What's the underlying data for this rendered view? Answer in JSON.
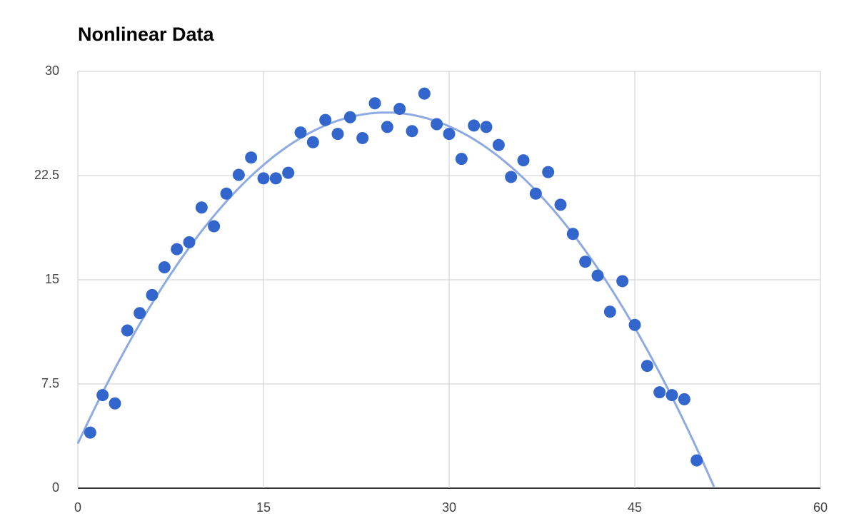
{
  "chart_data": {
    "type": "scatter",
    "title": "Nonlinear Data",
    "series": [
      {
        "color": "#3366cc",
        "x": [
          1,
          2,
          3,
          4,
          5,
          6,
          7,
          8,
          9,
          10,
          11,
          12,
          13,
          14,
          15,
          16,
          17,
          18,
          19,
          20,
          21,
          22,
          23,
          24,
          25,
          26,
          27,
          28,
          29,
          30,
          31,
          32,
          33,
          34,
          35,
          36,
          37,
          38,
          39,
          40,
          41,
          42,
          43,
          44,
          45,
          46,
          47,
          48,
          49,
          50
        ],
        "values": [
          4.0,
          6.7,
          6.1,
          11.35,
          12.6,
          13.9,
          15.9,
          17.2,
          17.7,
          20.2,
          18.85,
          21.2,
          22.55,
          23.8,
          22.3,
          22.3,
          22.7,
          25.6,
          24.9,
          26.5,
          25.5,
          26.7,
          25.2,
          27.7,
          26.0,
          27.3,
          25.7,
          28.4,
          26.2,
          25.5,
          23.7,
          26.1,
          26.0,
          24.7,
          22.4,
          23.6,
          21.2,
          22.75,
          20.4,
          18.3,
          16.3,
          15.3,
          12.7,
          14.9,
          11.75,
          8.8,
          6.9,
          6.7,
          6.4,
          2.0
        ]
      }
    ],
    "trendline": {
      "type": "polynomial",
      "degree": 2,
      "color": "#8eaae3"
    },
    "xlim": [
      0,
      60
    ],
    "xticks": [
      0,
      15,
      30,
      45,
      60
    ],
    "ylim": [
      0,
      30
    ],
    "yticks": [
      0,
      7.5,
      15,
      22.5,
      30
    ],
    "grid": true
  }
}
